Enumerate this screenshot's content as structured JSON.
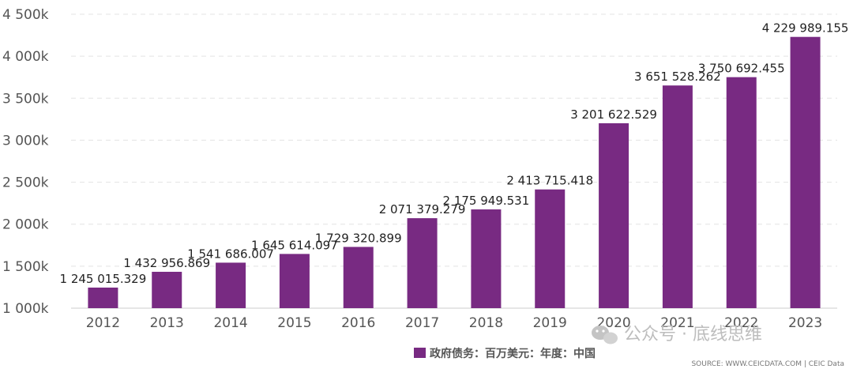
{
  "chart_data": {
    "type": "bar",
    "categories": [
      "2012",
      "2013",
      "2014",
      "2015",
      "2016",
      "2017",
      "2018",
      "2019",
      "2020",
      "2021",
      "2022",
      "2023"
    ],
    "series": [
      {
        "name": "政府债务：百万美元：年度：中国",
        "values": [
          1245015.329,
          1432956.869,
          1541686.007,
          1645614.097,
          1729320.899,
          2071379.279,
          2175949.531,
          2413715.418,
          3201622.529,
          3651528.262,
          3750692.455,
          4229989.155
        ],
        "labels": [
          "1 245 015.329",
          "1 432 956.869",
          "1 541 686.007",
          "1 645 614.097",
          "1 729 320.899",
          "2 071 379.279",
          "2 175 949.531",
          "2 413 715.418",
          "3 201 622.529",
          "3 651 528.262",
          "3 750 692.455",
          "4 229 989.155"
        ],
        "color": "#782a82"
      }
    ],
    "ylim": [
      1000000,
      4500000
    ],
    "yticks": [
      1000000,
      1500000,
      2000000,
      2500000,
      3000000,
      3500000,
      4000000,
      4500000
    ],
    "ytick_labels": [
      "1 000k",
      "1 500k",
      "2 000k",
      "2 500k",
      "3 000k",
      "3 500k",
      "4 000k",
      "4 500k"
    ],
    "grid": true,
    "legend_position": "bottom"
  },
  "source": "SOURCE: WWW.CEICDATA.COM | CEIC Data",
  "watermark": "公众号 · 底线思维",
  "watermark_icon": "wechat-icon"
}
